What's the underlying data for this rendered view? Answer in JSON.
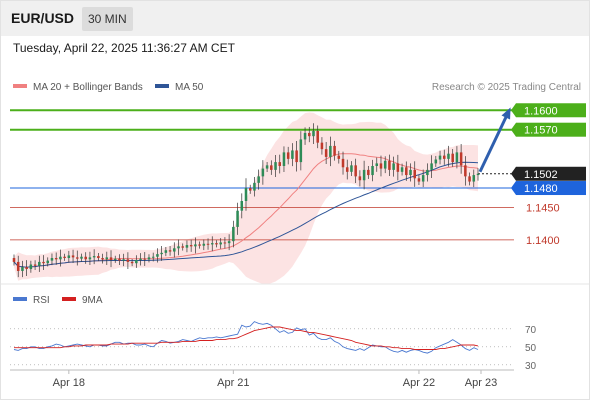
{
  "header": {
    "symbol": "EUR/USD",
    "timeframe": "30 MIN"
  },
  "timestamp": "Tuesday, April 22, 2025 11:36:27 AM CET",
  "legend": [
    {
      "label": "MA 20 + Bollinger Bands",
      "color": "#f08080"
    },
    {
      "label": "MA 50",
      "color": "#2f5597"
    }
  ],
  "credit": "Research © 2025 Trading Central",
  "colors": {
    "bull": "#2e8b57",
    "bear": "#c0392b",
    "resistance": "#4caf1a",
    "support": "#c0392b",
    "pivot": "#1e64dc",
    "current": "#222222",
    "band": "#fbd9d9",
    "rsi": "#4a78d0",
    "rsi_ma": "#d42020",
    "arrow": "#2f5fae"
  },
  "chart_data": [
    {
      "type": "candlestick",
      "ylim": [
        1.1335,
        1.1622
      ],
      "x_labels": [
        "Apr 18",
        "Apr 21",
        "Apr 22",
        "Apr 23"
      ],
      "levels": [
        {
          "label": "1.1600",
          "value": 1.16,
          "kind": "resistance"
        },
        {
          "label": "1.1570",
          "value": 1.157,
          "kind": "resistance"
        },
        {
          "label": "1.1502",
          "value": 1.1502,
          "kind": "current"
        },
        {
          "label": "1.1480",
          "value": 1.148,
          "kind": "pivot"
        },
        {
          "label": "1.1450",
          "value": 1.145,
          "kind": "support"
        },
        {
          "label": "1.1400",
          "value": 1.14,
          "kind": "support"
        }
      ],
      "close": [
        1.1366,
        1.1352,
        1.1358,
        1.1355,
        1.1362,
        1.136,
        1.1366,
        1.1364,
        1.1368,
        1.1372,
        1.137,
        1.1374,
        1.1372,
        1.1376,
        1.1373,
        1.1371,
        1.1374,
        1.137,
        1.1373,
        1.1375,
        1.1372,
        1.137,
        1.1373,
        1.1369,
        1.1371,
        1.1368,
        1.137,
        1.1366,
        1.1364,
        1.1369,
        1.1371,
        1.137,
        1.1373,
        1.1374,
        1.1378,
        1.138,
        1.1384,
        1.1382,
        1.1387,
        1.139,
        1.1388,
        1.1392,
        1.139,
        1.1393,
        1.1391,
        1.1394,
        1.1393,
        1.1395,
        1.1393,
        1.1396,
        1.1395,
        1.1398,
        1.142,
        1.1445,
        1.146,
        1.148,
        1.1476,
        1.1488,
        1.1498,
        1.151,
        1.1515,
        1.1508,
        1.152,
        1.1514,
        1.1535,
        1.1525,
        1.1538,
        1.152,
        1.1555,
        1.1565,
        1.156,
        1.1568,
        1.155,
        1.154,
        1.1528,
        1.1545,
        1.153,
        1.1525,
        1.1512,
        1.1505,
        1.1515,
        1.1498,
        1.1492,
        1.1508,
        1.15,
        1.1514,
        1.1518,
        1.151,
        1.1522,
        1.1508,
        1.1518,
        1.1505,
        1.1512,
        1.15,
        1.1508,
        1.1495,
        1.149,
        1.15,
        1.1508,
        1.1518,
        1.1524,
        1.153,
        1.1525,
        1.1533,
        1.152,
        1.1535,
        1.1515,
        1.1498,
        1.149,
        1.15,
        1.1502
      ],
      "rsi": {
        "ylim": [
          22,
          82
        ],
        "ticks": [
          70,
          50,
          30
        ],
        "values": [
          47,
          46,
          48,
          48,
          50,
          50,
          48,
          48,
          50,
          51,
          53,
          52,
          50,
          51,
          52,
          53,
          52,
          51,
          50,
          52,
          52,
          51,
          51,
          53,
          55,
          55,
          53,
          54,
          54,
          52,
          52,
          53,
          51,
          50,
          54,
          57,
          56,
          54,
          55,
          56,
          58,
          57,
          56,
          58,
          60,
          59,
          60,
          60,
          61,
          60,
          61,
          62,
          63,
          64,
          74,
          72,
          73,
          78,
          76,
          75,
          76,
          74,
          70,
          66,
          68,
          65,
          66,
          71,
          69,
          70,
          63,
          65,
          60,
          58,
          58,
          60,
          56,
          54,
          50,
          48,
          47,
          46,
          48,
          46,
          49,
          52,
          51,
          50,
          50,
          47,
          45,
          44,
          46,
          44,
          46,
          47,
          46,
          44,
          43,
          45,
          49,
          51,
          53,
          55,
          58,
          55,
          52,
          48,
          46,
          49,
          47
        ],
        "ma": [
          49,
          49,
          49,
          49,
          49,
          49,
          49,
          49,
          49,
          49,
          49,
          49,
          50,
          50,
          51,
          51,
          51,
          52,
          52,
          52,
          52,
          52,
          52,
          53,
          53,
          53,
          53,
          53,
          54,
          54,
          54,
          54,
          54,
          54,
          54,
          55,
          55,
          55,
          55,
          55,
          56,
          56,
          56,
          56,
          57,
          57,
          57,
          57,
          58,
          58,
          58,
          59,
          59,
          60,
          62,
          64,
          66,
          68,
          69,
          70,
          71,
          72,
          72,
          72,
          71,
          70,
          69,
          68,
          68,
          67,
          66,
          66,
          65,
          64,
          63,
          62,
          61,
          60,
          59,
          58,
          57,
          55,
          54,
          53,
          52,
          51,
          51,
          51,
          50,
          50,
          49,
          49,
          48,
          48,
          48,
          47,
          47,
          47,
          47,
          47,
          47,
          48,
          48,
          49,
          50,
          51,
          52,
          52,
          52,
          52,
          51
        ]
      }
    }
  ]
}
